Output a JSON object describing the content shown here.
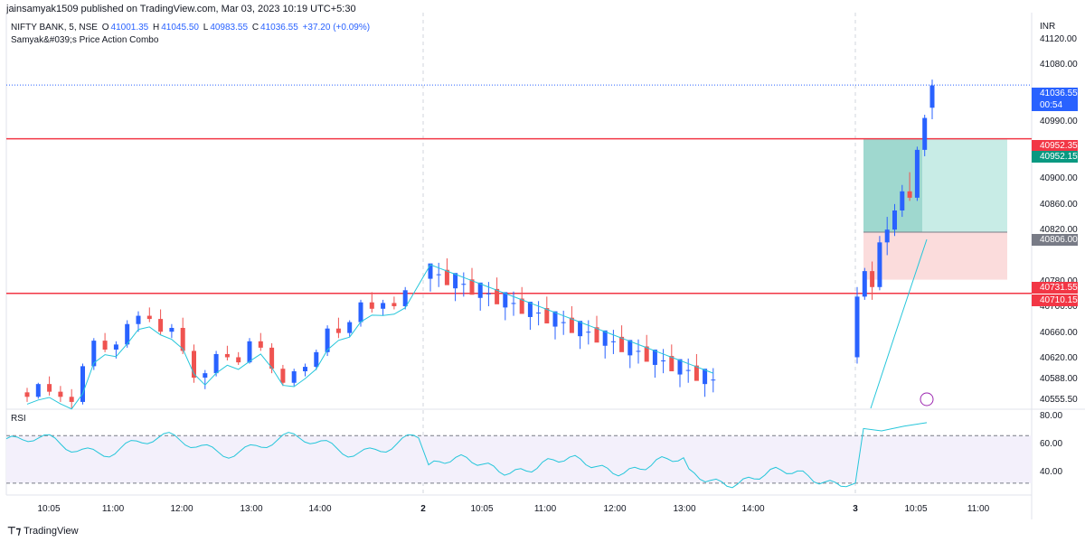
{
  "header": {
    "published": "jainsamyak1509 published on TradingView.com, Mar 03, 2023 10:19 UTC+5:30"
  },
  "legend": {
    "symbol": "NIFTY BANK, 5, NSE",
    "o_label": "O",
    "o": "41001.35",
    "h_label": "H",
    "h": "41045.50",
    "l_label": "L",
    "l": "40983.55",
    "c_label": "C",
    "c": "41036.55",
    "change": "+37.20 (+0.09%)",
    "indicator": "Samyak&#039;s Price Action Combo"
  },
  "rsi_label": "RSI",
  "currency": "INR",
  "colors": {
    "up": "#2962ff",
    "down": "#ef5350",
    "line": "#26c6da",
    "hline": "#f23645",
    "target": "#c8ece6",
    "stop": "#fbdcdc"
  },
  "chart_data": {
    "type": "candlestick",
    "ylim": [
      40530,
      41150
    ],
    "yticks": [
      "41120.00",
      "41080.00",
      "40990.00",
      "40900.00",
      "40860.00",
      "40820.00",
      "40780.00",
      "40700.00",
      "40660.00",
      "40620.00",
      "40588.00",
      "40555.50"
    ],
    "price_labels": [
      {
        "text": "41036.55",
        "sub": "00:54",
        "color": "#2962ff"
      },
      {
        "text": "40952.35",
        "color": "#f23645"
      },
      {
        "text": "40952.15",
        "color": "#089981"
      },
      {
        "text": "40806.00",
        "color": "#787b86"
      },
      {
        "text": "40731.55",
        "color": "#f23645"
      },
      {
        "text": "40710.15",
        "color": "#f23645"
      }
    ],
    "horizontal_lines": [
      40952.35,
      40710.15
    ],
    "current_price": 41036.55,
    "position": {
      "entry": 40806.0,
      "target": 40952.15,
      "stop": 40731.55
    },
    "rsi": {
      "range": [
        20,
        90
      ],
      "levels": [
        70,
        30
      ],
      "ticks": [
        "80.00",
        "60.00",
        "40.00"
      ]
    },
    "xticks": [
      "10:05",
      "11:00",
      "12:00",
      "13:00",
      "14:00",
      "2",
      "10:05",
      "11:00",
      "12:00",
      "13:00",
      "14:00",
      "3",
      "10:05",
      "11:00"
    ],
    "day_labels": [
      "2",
      "3"
    ],
    "segments": [
      {
        "name": "day1",
        "start": [
          40545,
          40548,
          40550,
          40547,
          40552,
          40560,
          40568,
          40575,
          40583,
          40592,
          40600,
          40608,
          40613,
          40618,
          40625,
          40633,
          40640,
          40648,
          40655,
          40660,
          40665,
          40668,
          40670,
          40672,
          40676,
          40680,
          40684,
          40688,
          40690,
          40692,
          40695,
          40698,
          40700,
          40702,
          40690
        ]
      },
      {
        "name": "day3",
        "start": [
          40680,
          40740
        ]
      }
    ],
    "ohlc_day1": [
      [
        40555,
        40562,
        40540,
        40548
      ],
      [
        40548,
        40570,
        40545,
        40568
      ],
      [
        40568,
        40580,
        40550,
        40556
      ],
      [
        40556,
        40565,
        40540,
        40548
      ],
      [
        40548,
        40560,
        40530,
        40540
      ],
      [
        40540,
        40600,
        40536,
        40596
      ],
      [
        40596,
        40640,
        40590,
        40636
      ],
      [
        40636,
        40648,
        40618,
        40622
      ],
      [
        40622,
        40635,
        40608,
        40630
      ],
      [
        40630,
        40668,
        40625,
        40662
      ],
      [
        40662,
        40682,
        40650,
        40675
      ],
      [
        40675,
        40688,
        40665,
        40670
      ],
      [
        40670,
        40685,
        40645,
        40650
      ],
      [
        40650,
        40662,
        40640,
        40656
      ],
      [
        40656,
        40672,
        40615,
        40620
      ],
      [
        40620,
        40630,
        40570,
        40578
      ],
      [
        40578,
        40590,
        40560,
        40585
      ],
      [
        40585,
        40620,
        40580,
        40615
      ],
      [
        40615,
        40628,
        40605,
        40610
      ],
      [
        40610,
        40618,
        40598,
        40602
      ],
      [
        40602,
        40640,
        40600,
        40635
      ],
      [
        40635,
        40648,
        40620,
        40625
      ],
      [
        40625,
        40632,
        40585,
        40592
      ],
      [
        40592,
        40598,
        40565,
        40570
      ],
      [
        40570,
        40592,
        40565,
        40588
      ],
      [
        40588,
        40600,
        40580,
        40595
      ],
      [
        40595,
        40622,
        40590,
        40618
      ],
      [
        40618,
        40660,
        40612,
        40655
      ],
      [
        40655,
        40672,
        40640,
        40648
      ],
      [
        40648,
        40668,
        40642,
        40665
      ],
      [
        40665,
        40700,
        40658,
        40696
      ],
      [
        40696,
        40712,
        40680,
        40686
      ],
      [
        40686,
        40700,
        40675,
        40695
      ],
      [
        40695,
        40705,
        40685,
        40690
      ],
      [
        40690,
        40720,
        40685,
        40715
      ]
    ]
  }
}
